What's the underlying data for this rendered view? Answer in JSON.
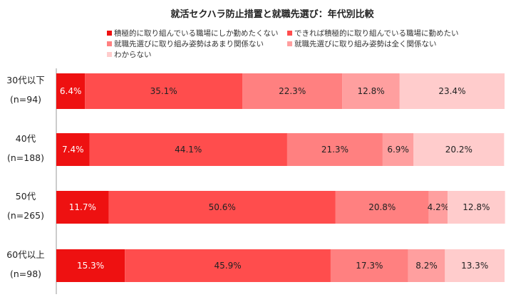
{
  "chart_data": {
    "type": "bar",
    "orientation": "horizontal",
    "stacked": "100%",
    "title": "就活セクハラ防止措置と就職先選び：年代別比較",
    "categories": [
      [
        "30代以下",
        "(n=94)"
      ],
      [
        "40代",
        "(n=188)"
      ],
      [
        "50代",
        "(n=265)"
      ],
      [
        "60代以上",
        "(n=98)"
      ]
    ],
    "series": [
      {
        "name": "積極的に取り組んでいる職場にしか勤めたくない",
        "color": "#ee1111",
        "label_color": "#ffffff",
        "values": [
          6.4,
          7.4,
          11.7,
          15.3
        ]
      },
      {
        "name": "できれば積極的に取り組んでいる職場に勤めたい",
        "color": "#ff4d4d",
        "label_color": "#222222",
        "values": [
          35.1,
          44.1,
          50.6,
          45.9
        ]
      },
      {
        "name": "就職先選びに取り組み姿勢はあまり関係ない",
        "color": "#ff8080",
        "label_color": "#222222",
        "values": [
          22.3,
          21.3,
          20.8,
          17.3
        ]
      },
      {
        "name": "就職先選びに取り組み姿勢は全く関係ない",
        "color": "#ff9f9f",
        "label_color": "#222222",
        "values": [
          12.8,
          6.9,
          4.2,
          8.2
        ]
      },
      {
        "name": "わからない",
        "color": "#ffcccc",
        "label_color": "#222222",
        "values": [
          23.4,
          20.2,
          12.8,
          13.3
        ]
      }
    ],
    "value_suffix": "%",
    "xlim": [
      0,
      100
    ],
    "legend_position": "top",
    "grid": false
  }
}
